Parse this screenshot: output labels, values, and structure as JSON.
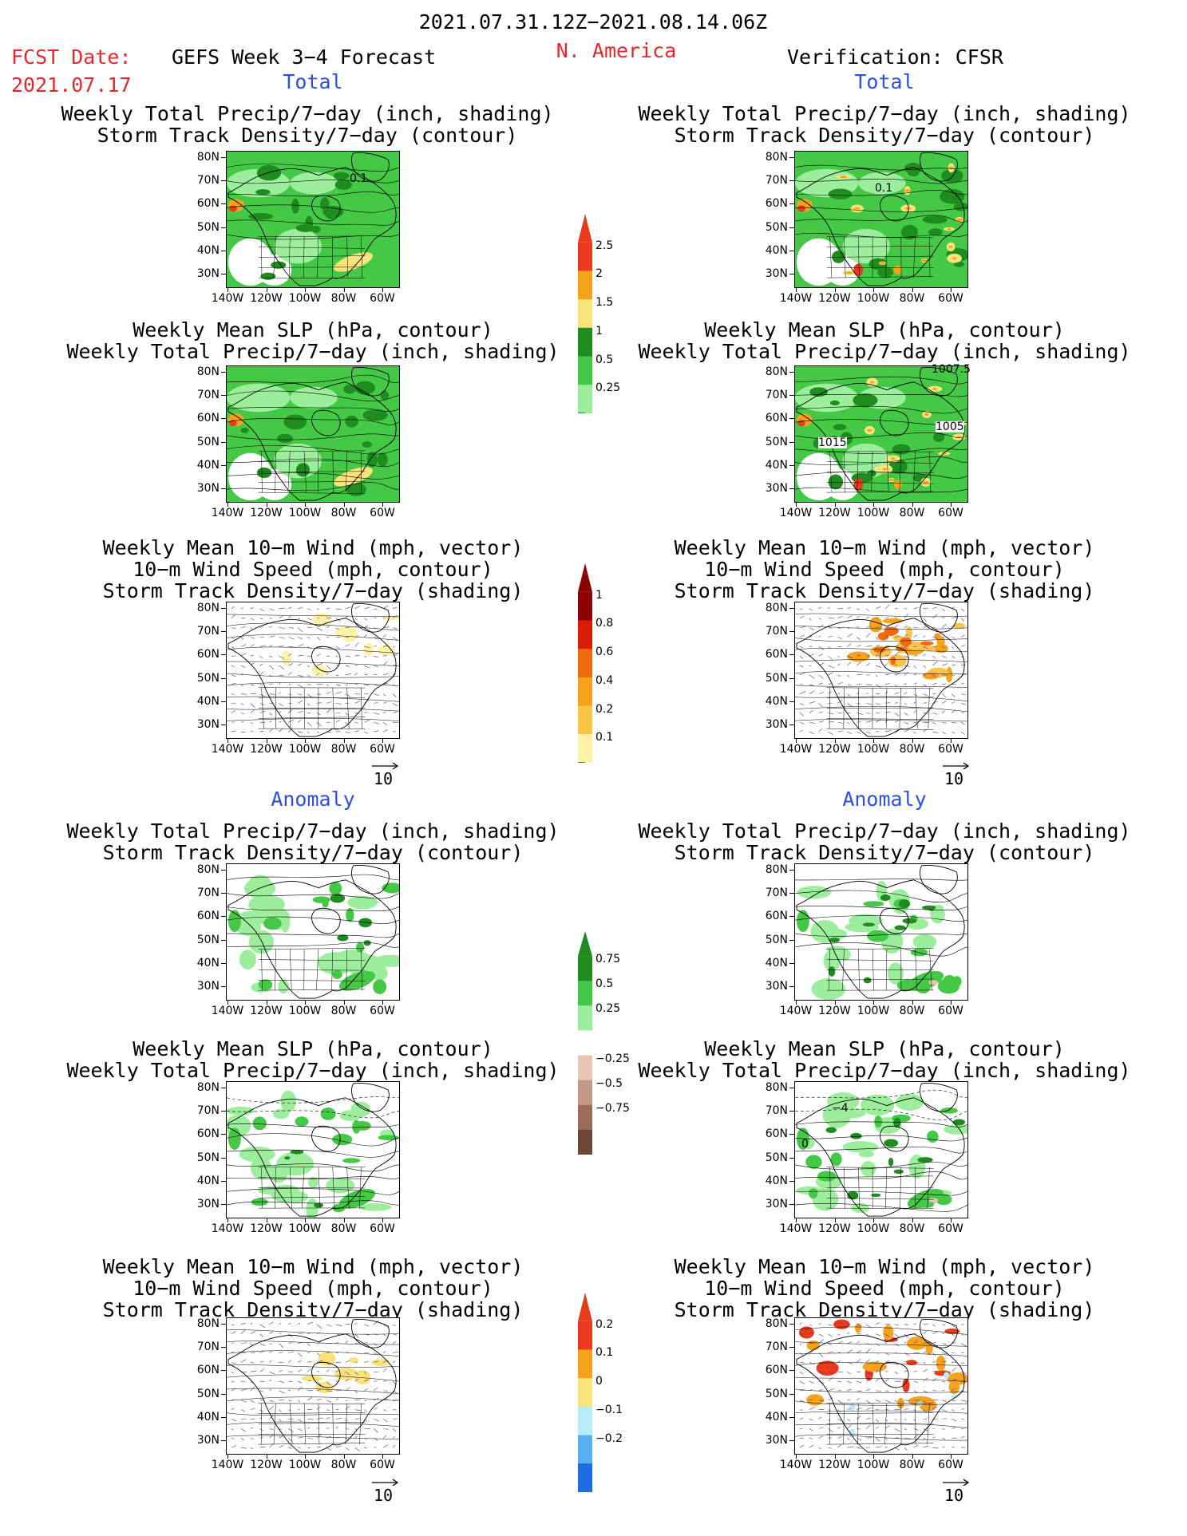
{
  "header": {
    "period": "2021.07.31.12Z−2021.08.14.06Z",
    "fcst_date_label": "FCST Date:",
    "fcst_date_value": "2021.07.17",
    "model": "GEFS Week 3−4 Forecast",
    "region": "N. America",
    "verification": "Verification: CFSR"
  },
  "sections": {
    "total": "Total",
    "anomaly": "Anomaly"
  },
  "panels": {
    "precip_storm": [
      "Weekly Total Precip/7−day (inch, shading)",
      "Storm Track Density/7−day (contour)"
    ],
    "slp_precip": [
      "Weekly Mean SLP (hPa, contour)",
      "Weekly Total Precip/7−day (inch, shading)"
    ],
    "wind_storm": [
      "Weekly Mean 10−m Wind (mph, vector)",
      "10−m Wind Speed (mph, contour)",
      "Storm Track Density/7−day (shading)"
    ]
  },
  "axes": {
    "lat": [
      "80N",
      "70N",
      "60N",
      "50N",
      "40N",
      "30N"
    ],
    "lon": [
      "140W",
      "120W",
      "100W",
      "80W",
      "60W"
    ]
  },
  "map_labels": {
    "storm_contour": "0.1",
    "slp_1007": "1007.5",
    "slp_1005": "1005",
    "slp_1015": "1015",
    "anom_slp_neg": "−4",
    "anom_slp_zero": "0"
  },
  "vector_ref": "10",
  "colorbars": {
    "precip_total": {
      "labels": [
        "2.5",
        "2",
        "1.5",
        "1",
        "0.5",
        "0.25"
      ],
      "colors": [
        "#e83a1c",
        "#f7a21b",
        "#fbe27a",
        "#1e8c1e",
        "#45c845",
        "#9cee9c"
      ]
    },
    "storm_total": {
      "labels": [
        "1",
        "0.8",
        "0.6",
        "0.4",
        "0.2",
        "0.1"
      ],
      "colors": [
        "#8b0000",
        "#d81e05",
        "#f26a10",
        "#f7a21b",
        "#fbc54a",
        "#fdf2a6"
      ]
    },
    "precip_anom": {
      "labels": [
        "0.75",
        "0.5",
        "0.25",
        "−0.25",
        "−0.5",
        "−0.75"
      ],
      "colors": [
        "#1e8c1e",
        "#45c845",
        "#9cee9c",
        "#ffffff",
        "#e8c4b6",
        "#c49a86",
        "#9a6c5a",
        "#6e4636"
      ]
    },
    "storm_anom": {
      "labels": [
        "0.2",
        "0.1",
        "0",
        "−0.1",
        "−0.2"
      ],
      "colors": [
        "#e83a1c",
        "#f7a21b",
        "#fbe27a",
        "#b8ecf8",
        "#58b0f0",
        "#1e6ee0"
      ]
    }
  },
  "colors": {
    "accent_red": "#e8262b",
    "accent_blue": "#2b4fe0"
  }
}
